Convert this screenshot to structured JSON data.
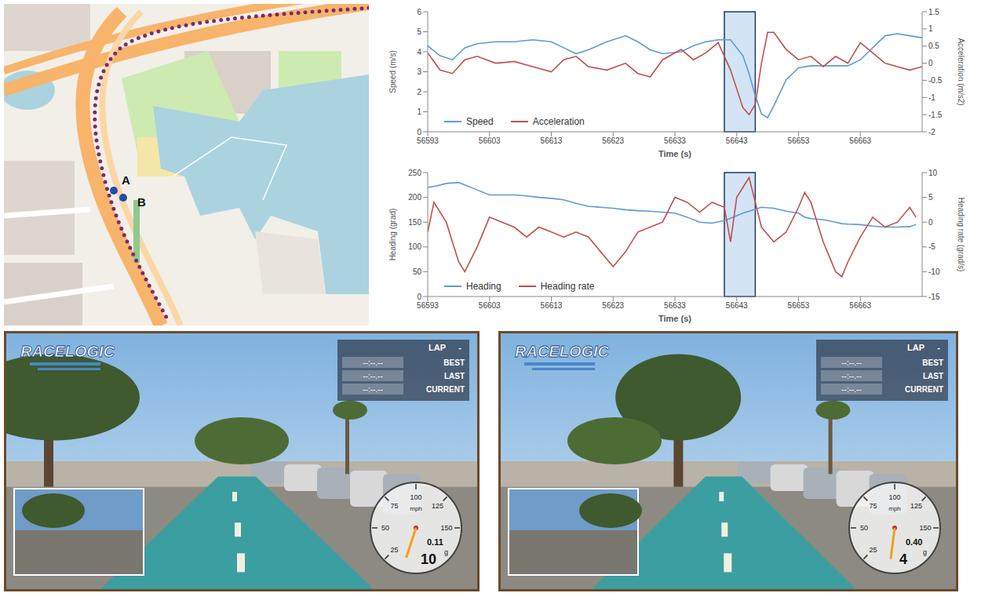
{
  "chart_data": [
    {
      "type": "line",
      "x": [
        56593,
        56595,
        56597,
        56599,
        56601,
        56604,
        56607,
        56610,
        56613,
        56615,
        56617,
        56619,
        56622,
        56625,
        56627,
        56629,
        56631,
        56634,
        56636,
        56638,
        56640,
        56642,
        56644,
        56645,
        56646,
        56647,
        56648,
        56649,
        56651,
        56653,
        56655,
        56657,
        56659,
        56661,
        56663,
        56665,
        56667,
        56669,
        56671,
        56673
      ],
      "xlim": [
        56593,
        56673
      ],
      "xticks": [
        56593,
        56603,
        56613,
        56623,
        56633,
        56643,
        56653,
        56663
      ],
      "ylim": [
        0,
        6
      ],
      "yticks": [
        0,
        1,
        2,
        3,
        4,
        5,
        6
      ],
      "y2lim": [
        -2,
        1.5
      ],
      "y2ticks": [
        -2,
        -1.5,
        -1,
        -0.5,
        0,
        0.5,
        1,
        1.5
      ],
      "x_label": "Time (s)",
      "y_label": "Speed (m/s)",
      "y2_label": "Acceleration (m/s2)",
      "legend": "lower left",
      "grid": false,
      "highlight": [
        56641,
        56646
      ],
      "series": [
        {
          "name": "Speed",
          "color": "#5b9bd5",
          "values": [
            4.3,
            3.8,
            3.6,
            4.2,
            4.4,
            4.5,
            4.5,
            4.6,
            4.5,
            4.2,
            3.9,
            4.1,
            4.5,
            4.8,
            4.5,
            4.1,
            3.9,
            4.0,
            4.3,
            4.5,
            4.6,
            4.6,
            3.8,
            2.9,
            1.8,
            0.9,
            0.7,
            1.3,
            2.6,
            3.2,
            3.3,
            3.3,
            3.3,
            3.3,
            3.6,
            4.2,
            4.8,
            4.9,
            4.8,
            4.7
          ]
        },
        {
          "name": "Acceleration",
          "color": "#c0504d",
          "axis": "y2",
          "values": [
            0.3,
            -0.2,
            -0.3,
            0.1,
            0.2,
            0.0,
            0.05,
            -0.1,
            -0.25,
            0.1,
            0.2,
            -0.1,
            -0.2,
            0.0,
            -0.3,
            -0.4,
            0.1,
            0.4,
            0.1,
            0.3,
            0.6,
            -0.2,
            -1.3,
            -1.5,
            -1.2,
            0.0,
            0.9,
            0.9,
            0.4,
            0.1,
            0.2,
            -0.1,
            0.2,
            0.0,
            0.6,
            0.3,
            0.0,
            -0.1,
            -0.2,
            -0.1
          ]
        }
      ]
    },
    {
      "type": "line",
      "x": [
        56593,
        56594,
        56596,
        56598,
        56599,
        56601,
        56603,
        56605,
        56607,
        56609,
        56611,
        56613,
        56615,
        56617,
        56619,
        56621,
        56623,
        56625,
        56627,
        56629,
        56631,
        56633,
        56635,
        56637,
        56639,
        56641,
        56642,
        56643,
        56644,
        56645,
        56646,
        56647,
        56649,
        56651,
        56653,
        56654,
        56655,
        56657,
        56659,
        56660,
        56661,
        56663,
        56665,
        56667,
        56669,
        56671,
        56672
      ],
      "xlim": [
        56593,
        56673
      ],
      "xticks": [
        56593,
        56603,
        56613,
        56623,
        56633,
        56643,
        56653,
        56663
      ],
      "ylim": [
        0,
        250
      ],
      "yticks": [
        0,
        50,
        100,
        150,
        200,
        250
      ],
      "y2lim": [
        -15,
        10
      ],
      "y2ticks": [
        -15,
        -10,
        -5,
        0,
        5,
        10
      ],
      "x_label": "Time (s)",
      "y_label": "Heading (grad)",
      "y2_label": "Heading rate (grad/s)",
      "legend": "lower left",
      "grid": false,
      "highlight": [
        56641,
        56646
      ],
      "series": [
        {
          "name": "Heading",
          "color": "#5b9bd5",
          "values": [
            220,
            222,
            228,
            230,
            225,
            215,
            205,
            205,
            205,
            203,
            200,
            198,
            195,
            188,
            182,
            180,
            178,
            175,
            173,
            172,
            170,
            168,
            160,
            150,
            148,
            153,
            158,
            163,
            168,
            172,
            176,
            180,
            178,
            172,
            168,
            160,
            157,
            155,
            150,
            147,
            146,
            145,
            142,
            140,
            140,
            141,
            145
          ]
        },
        {
          "name": "Heading rate",
          "color": "#c0504d",
          "axis": "y2",
          "values": [
            -2,
            4,
            0,
            -8,
            -10,
            -5,
            1,
            0,
            -1,
            -3,
            -1,
            -2,
            -3,
            -2,
            -3,
            -6,
            -9,
            -6,
            -2,
            -1,
            0,
            5,
            4,
            2,
            4,
            3,
            -4,
            5,
            7,
            9,
            4,
            -1,
            -4,
            -2,
            3,
            6,
            4,
            -4,
            -10,
            -11,
            -8,
            -3,
            1,
            -1,
            0,
            3,
            1
          ]
        }
      ]
    }
  ],
  "map": {
    "markers": [
      "A",
      "B"
    ]
  },
  "screenshots": [
    {
      "logo": "RACELOGIC",
      "lap": {
        "label": "LAP",
        "value": "-"
      },
      "timing": [
        {
          "time": "--:--.--",
          "label": "BEST"
        },
        {
          "time": "--:--.--",
          "label": "LAST"
        },
        {
          "time": "--:--.--",
          "label": "CURRENT"
        }
      ],
      "gauge": {
        "ticks": [
          25,
          50,
          75,
          100,
          125,
          150
        ],
        "unit": "mph",
        "speed": 10,
        "g_force": "0.11",
        "g_unit": "g"
      }
    },
    {
      "logo": "RACELOGIC",
      "lap": {
        "label": "LAP",
        "value": "-"
      },
      "timing": [
        {
          "time": "--:--.--",
          "label": "BEST"
        },
        {
          "time": "--:--.--",
          "label": "LAST"
        },
        {
          "time": "--:--.--",
          "label": "CURRENT"
        }
      ],
      "gauge": {
        "ticks": [
          25,
          50,
          75,
          100,
          125,
          150
        ],
        "unit": "mph",
        "speed": 4,
        "g_force": "0.40",
        "g_unit": "g"
      }
    }
  ]
}
